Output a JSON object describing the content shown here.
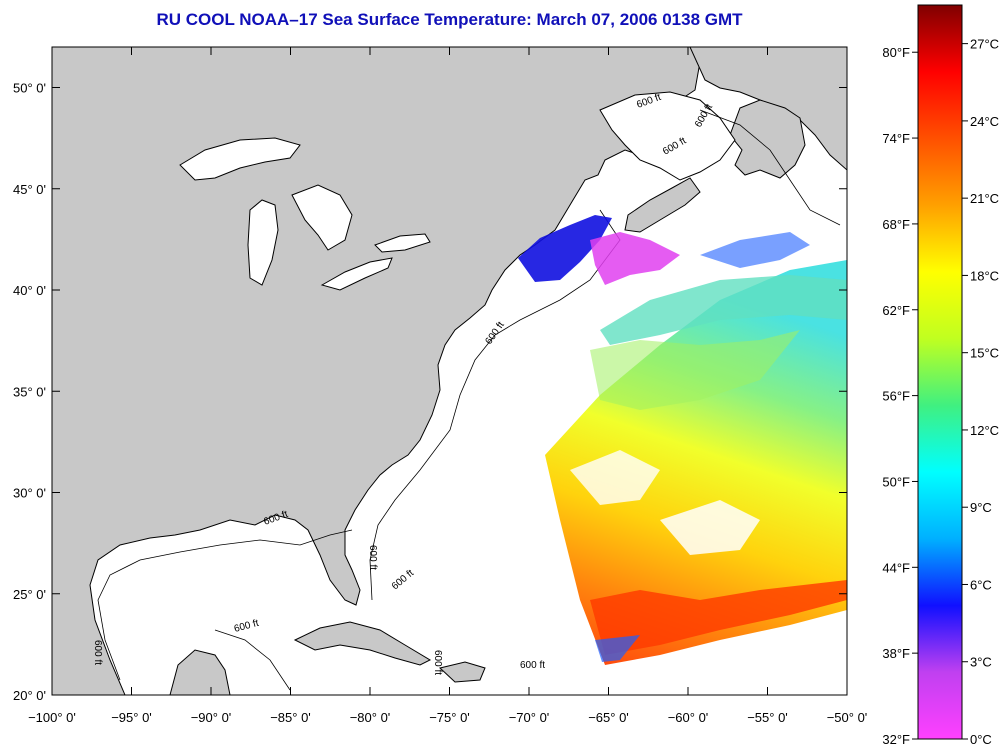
{
  "title": "RU COOL  NOAA–17  Sea Surface Temperature:  March 07, 2006 0138 GMT",
  "map": {
    "lon_range": [
      -100,
      -50
    ],
    "lat_range": [
      20,
      52
    ],
    "lon_ticks": [
      {
        "value": -100,
        "label": "−100° 0'"
      },
      {
        "value": -95,
        "label": "−95° 0'"
      },
      {
        "value": -90,
        "label": "−90° 0'"
      },
      {
        "value": -85,
        "label": "−85° 0'"
      },
      {
        "value": -80,
        "label": "−80° 0'"
      },
      {
        "value": -75,
        "label": "−75° 0'"
      },
      {
        "value": -70,
        "label": "−70° 0'"
      },
      {
        "value": -65,
        "label": "−65° 0'"
      },
      {
        "value": -60,
        "label": "−60° 0'"
      },
      {
        "value": -55,
        "label": "−55° 0'"
      },
      {
        "value": -50,
        "label": "−50° 0'"
      }
    ],
    "lat_ticks": [
      {
        "value": 20,
        "label": "20° 0'"
      },
      {
        "value": 25,
        "label": "25° 0'"
      },
      {
        "value": 30,
        "label": "30° 0'"
      },
      {
        "value": 35,
        "label": "35° 0'"
      },
      {
        "value": 40,
        "label": "40° 0'"
      },
      {
        "value": 45,
        "label": "45° 0'"
      },
      {
        "value": 50,
        "label": "50° 0'"
      }
    ],
    "isobath_label": "600 ft",
    "land_color": "#c8c8c8",
    "water_color": "#ffffff"
  },
  "colorbar": {
    "celsius": [
      {
        "value": 0,
        "label": "0°C"
      },
      {
        "value": 3,
        "label": "3°C"
      },
      {
        "value": 6,
        "label": "6°C"
      },
      {
        "value": 9,
        "label": "9°C"
      },
      {
        "value": 12,
        "label": "12°C"
      },
      {
        "value": 15,
        "label": "15°C"
      },
      {
        "value": 18,
        "label": "18°C"
      },
      {
        "value": 21,
        "label": "21°C"
      },
      {
        "value": 24,
        "label": "24°C"
      },
      {
        "value": 27,
        "label": "27°C"
      }
    ],
    "fahrenheit": [
      {
        "value": 32,
        "label": "32°F"
      },
      {
        "value": 38,
        "label": "38°F"
      },
      {
        "value": 44,
        "label": "44°F"
      },
      {
        "value": 50,
        "label": "50°F"
      },
      {
        "value": 56,
        "label": "56°F"
      },
      {
        "value": 62,
        "label": "62°F"
      },
      {
        "value": 68,
        "label": "68°F"
      },
      {
        "value": 74,
        "label": "74°F"
      },
      {
        "value": 80,
        "label": "80°F"
      }
    ],
    "range_c": [
      0,
      28.5
    ],
    "colors": [
      "#ff40ff",
      "#c040f0",
      "#1010ff",
      "#00b0ff",
      "#00ffff",
      "#40f080",
      "#c0ff20",
      "#ffff00",
      "#ffa000",
      "#ff5000",
      "#ff0000",
      "#800000"
    ]
  }
}
